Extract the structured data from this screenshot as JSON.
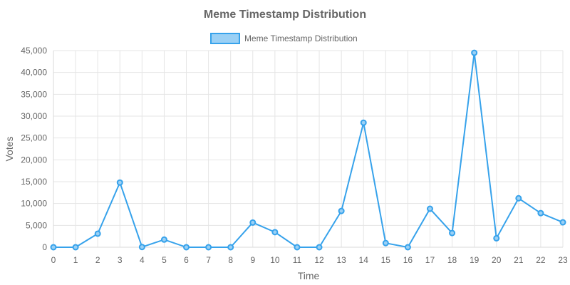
{
  "chart_data": {
    "type": "line",
    "title": "Meme Timestamp Distribution",
    "legend": {
      "placement": "top-center",
      "entries": [
        "Meme Timestamp Distribution"
      ]
    },
    "xlabel": "Time",
    "ylabel": "Votes",
    "x": [
      0,
      1,
      2,
      3,
      4,
      5,
      6,
      7,
      8,
      9,
      10,
      11,
      12,
      13,
      14,
      15,
      16,
      17,
      18,
      19,
      20,
      21,
      22,
      23
    ],
    "x_tick_labels": [
      "0",
      "1",
      "2",
      "3",
      "4",
      "5",
      "6",
      "7",
      "8",
      "9",
      "10",
      "11",
      "12",
      "13",
      "14",
      "15",
      "16",
      "17",
      "18",
      "19",
      "20",
      "21",
      "22",
      "23"
    ],
    "y_tick_labels": [
      "0",
      "5,000",
      "10,000",
      "15,000",
      "20,000",
      "25,000",
      "30,000",
      "35,000",
      "40,000",
      "45,000"
    ],
    "ylim": [
      0,
      45000
    ],
    "y_ticks": [
      0,
      5000,
      10000,
      15000,
      20000,
      25000,
      30000,
      35000,
      40000,
      45000
    ],
    "grid": true,
    "series": [
      {
        "name": "Meme Timestamp Distribution",
        "values": [
          0,
          0,
          3100,
          14800,
          50,
          1750,
          0,
          0,
          0,
          5650,
          3450,
          0,
          0,
          8300,
          28500,
          950,
          0,
          8800,
          3250,
          44500,
          2050,
          11200,
          7800,
          5700
        ],
        "color": "#36a2eb",
        "fill_color": "#9ad0f5"
      }
    ]
  }
}
